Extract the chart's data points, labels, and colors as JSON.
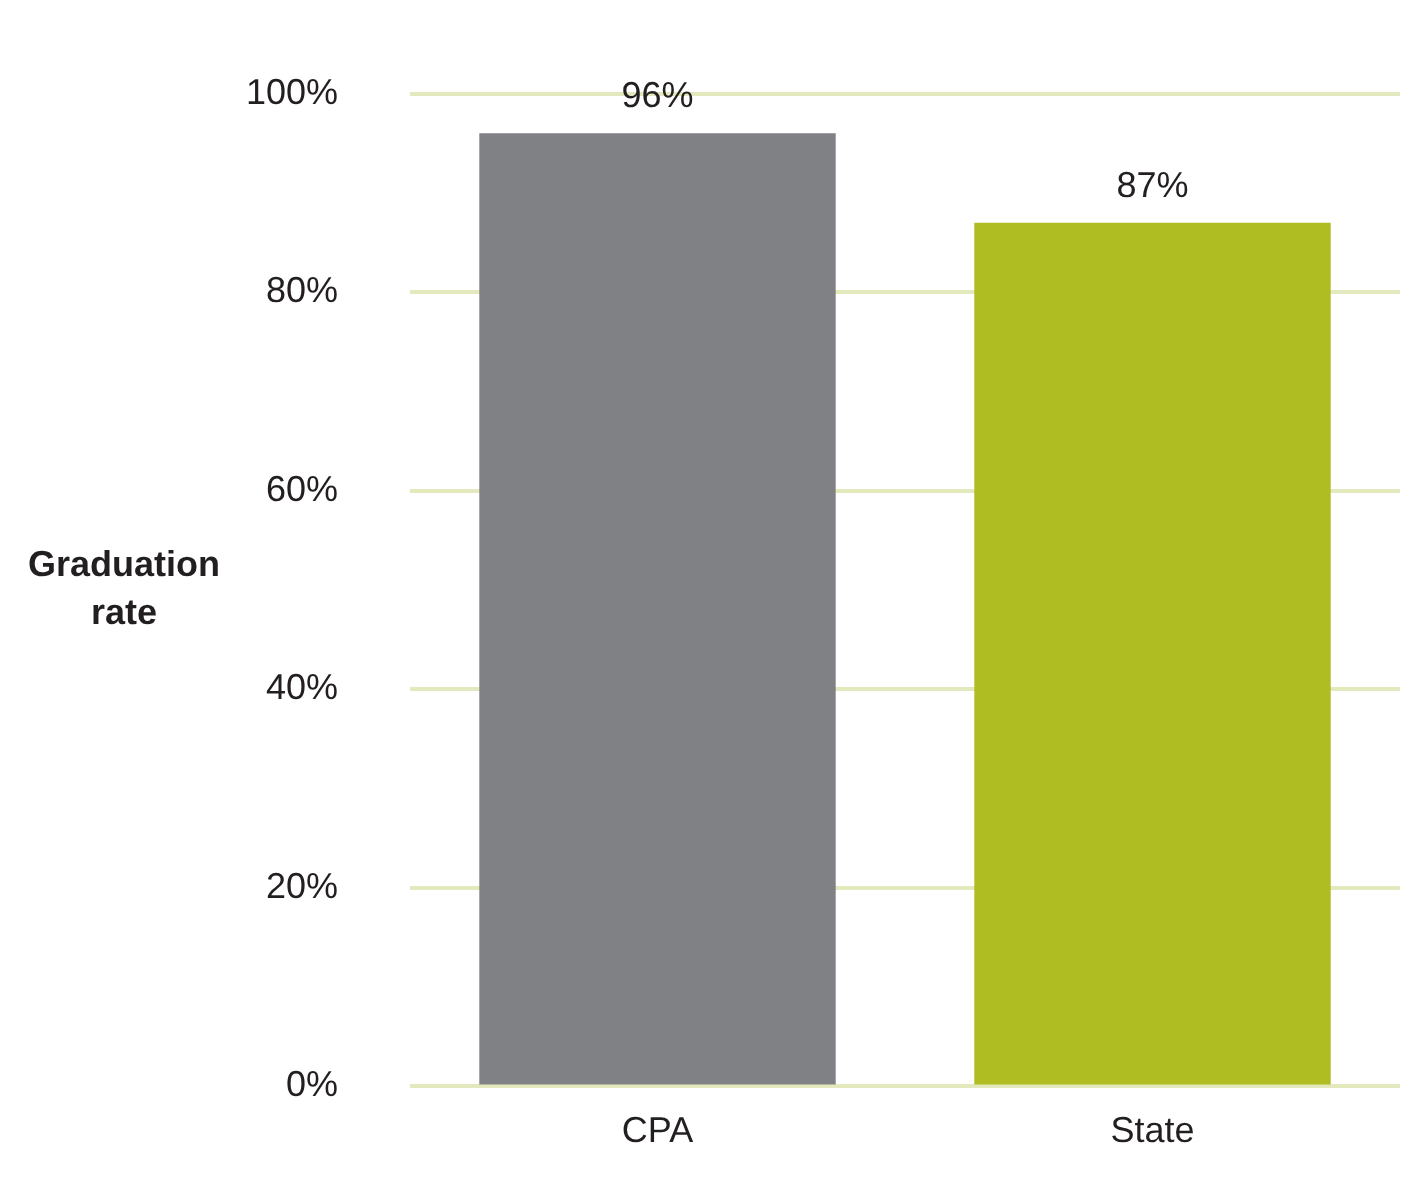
{
  "chart_data": {
    "type": "bar",
    "ylabel": "Graduation rate",
    "categories": [
      "CPA",
      "State"
    ],
    "values": [
      96,
      87
    ],
    "colors": [
      "#808184",
      "#afbc22"
    ],
    "value_labels": [
      "96%",
      "87%"
    ],
    "ylim": [
      0,
      100
    ],
    "yticks": [
      {
        "value": 0,
        "label": "0%"
      },
      {
        "value": 20,
        "label": "20%"
      },
      {
        "value": 40,
        "label": "40%"
      },
      {
        "value": 60,
        "label": "60%"
      },
      {
        "value": 80,
        "label": "80%"
      },
      {
        "value": 100,
        "label": "100%"
      }
    ],
    "grid": "y"
  }
}
